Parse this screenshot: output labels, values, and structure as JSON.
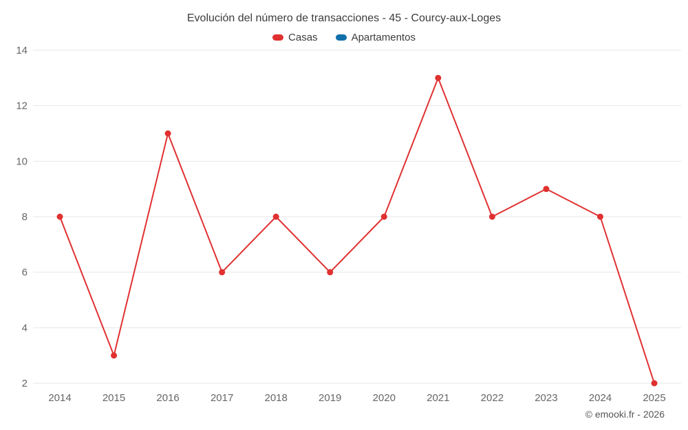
{
  "header": {
    "title": "Evolución del número de transacciones - 45 - Courcy-aux-Loges"
  },
  "legend": {
    "items": [
      {
        "label": "Casas",
        "color": "#e03030"
      },
      {
        "label": "Apartamentos",
        "color": "#1170aa"
      }
    ]
  },
  "chart_data": {
    "type": "line",
    "title": "Evolución del número de transacciones - 45 - Courcy-aux-Loges",
    "x": [
      2014,
      2015,
      2016,
      2017,
      2018,
      2019,
      2020,
      2021,
      2022,
      2023,
      2024,
      2025
    ],
    "series": [
      {
        "name": "Casas",
        "color": "#e03030",
        "values": [
          8,
          3,
          11,
          6,
          8,
          6,
          8,
          13,
          8,
          9,
          8,
          2
        ]
      },
      {
        "name": "Apartamentos",
        "color": "#1170aa",
        "values": []
      }
    ],
    "xlabel": "",
    "ylabel": "",
    "ylim": [
      2,
      14
    ],
    "yticks": [
      2,
      4,
      6,
      8,
      10,
      12,
      14
    ],
    "grid": "horizontal",
    "legend_position": "top"
  },
  "footer": {
    "copyright": "© emooki.fr - 2026"
  },
  "colors": {
    "grid": "#e6e6e6",
    "axis_text": "#666666",
    "title_text": "#3c3c3c",
    "background": "#ffffff"
  }
}
